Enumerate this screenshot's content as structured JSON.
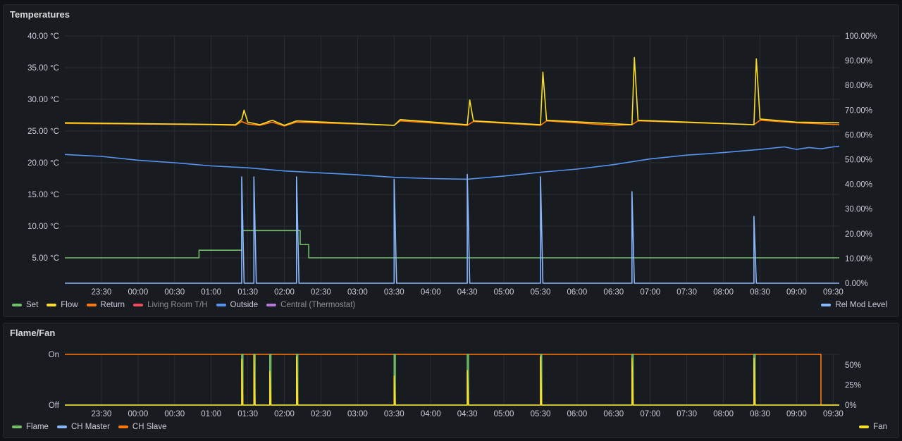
{
  "panels": {
    "temperatures": {
      "title": "Temperatures"
    },
    "flame_fan": {
      "title": "Flame/Fan"
    }
  },
  "chart_data": [
    {
      "type": "line",
      "title": "Temperatures",
      "x_ticks": [
        "23:30",
        "00:00",
        "00:30",
        "01:00",
        "01:30",
        "02:00",
        "02:30",
        "03:00",
        "03:30",
        "04:00",
        "04:30",
        "05:00",
        "05:30",
        "06:00",
        "06:30",
        "07:00",
        "07:30",
        "08:00",
        "08:30",
        "09:00",
        "09:30"
      ],
      "x_range": [
        "23:00",
        "09:35"
      ],
      "y_left": {
        "ticks": [
          "5.00 °C",
          "10.00 °C",
          "15.00 °C",
          "20.00 °C",
          "25.00 °C",
          "30.00 °C",
          "35.00 °C",
          "40.00 °C"
        ],
        "range": [
          1,
          40
        ]
      },
      "y_right": {
        "ticks": [
          "0.00%",
          "10.00%",
          "20.00%",
          "30.00%",
          "40.00%",
          "50.00%",
          "60.00%",
          "70.00%",
          "80.00%",
          "90.00%",
          "100.00%"
        ],
        "range": [
          0,
          100
        ]
      },
      "grid": true,
      "legend_left": [
        {
          "name": "Set",
          "color": "#73bf69",
          "hidden": false
        },
        {
          "name": "Flow",
          "color": "#fade2a",
          "hidden": false
        },
        {
          "name": "Return",
          "color": "#ff780a",
          "hidden": false
        },
        {
          "name": "Living Room T/H",
          "color": "#f2495c",
          "hidden": true
        },
        {
          "name": "Outside",
          "color": "#5794f2",
          "hidden": false
        },
        {
          "name": "Central (Thermostat)",
          "color": "#b877d9",
          "hidden": true
        }
      ],
      "legend_right": [
        {
          "name": "Rel Mod Level",
          "color": "#8ab8ff",
          "hidden": false
        }
      ],
      "series": [
        {
          "key": "set",
          "axis": "left",
          "color": "#73bf69",
          "step": true,
          "points": [
            [
              "23:00",
              5.0
            ],
            [
              "00:50",
              5.0
            ],
            [
              "00:50",
              6.2
            ],
            [
              "01:25",
              6.2
            ],
            [
              "01:25",
              9.3
            ],
            [
              "02:13",
              9.3
            ],
            [
              "02:13",
              7.1
            ],
            [
              "02:20",
              7.1
            ],
            [
              "02:20",
              5.0
            ],
            [
              "09:35",
              5.0
            ]
          ]
        },
        {
          "key": "return",
          "axis": "left",
          "color": "#ff780a",
          "step": false,
          "points": [
            [
              "23:00",
              26.2
            ],
            [
              "01:00",
              26.0
            ],
            [
              "01:20",
              25.9
            ],
            [
              "01:25",
              26.5
            ],
            [
              "01:30",
              26.1
            ],
            [
              "01:40",
              25.9
            ],
            [
              "01:50",
              26.4
            ],
            [
              "02:00",
              25.8
            ],
            [
              "02:10",
              26.4
            ],
            [
              "03:00",
              26.1
            ],
            [
              "03:30",
              25.9
            ],
            [
              "03:35",
              26.6
            ],
            [
              "04:30",
              25.9
            ],
            [
              "04:35",
              26.5
            ],
            [
              "05:30",
              25.9
            ],
            [
              "05:35",
              26.6
            ],
            [
              "06:30",
              25.9
            ],
            [
              "06:45",
              26.0
            ],
            [
              "06:50",
              26.6
            ],
            [
              "08:25",
              26.0
            ],
            [
              "08:30",
              26.7
            ],
            [
              "09:00",
              26.3
            ],
            [
              "09:35",
              26.0
            ]
          ]
        },
        {
          "key": "flow",
          "axis": "left",
          "color": "#fade2a",
          "step": false,
          "points": [
            [
              "23:00",
              26.3
            ],
            [
              "01:20",
              26.0
            ],
            [
              "01:25",
              26.8
            ],
            [
              "01:27",
              28.3
            ],
            [
              "01:30",
              26.4
            ],
            [
              "01:40",
              26.0
            ],
            [
              "01:50",
              26.7
            ],
            [
              "02:00",
              25.9
            ],
            [
              "02:10",
              26.6
            ],
            [
              "03:30",
              25.9
            ],
            [
              "03:35",
              26.8
            ],
            [
              "04:30",
              26.0
            ],
            [
              "04:32",
              29.9
            ],
            [
              "04:35",
              26.6
            ],
            [
              "05:30",
              26.0
            ],
            [
              "05:32",
              34.3
            ],
            [
              "05:35",
              26.7
            ],
            [
              "06:45",
              26.0
            ],
            [
              "06:47",
              36.6
            ],
            [
              "06:50",
              26.7
            ],
            [
              "08:25",
              26.0
            ],
            [
              "08:27",
              36.4
            ],
            [
              "08:30",
              26.9
            ],
            [
              "09:00",
              26.4
            ],
            [
              "09:35",
              26.3
            ]
          ]
        },
        {
          "key": "outside",
          "axis": "left",
          "color": "#5794f2",
          "step": false,
          "points": [
            [
              "23:00",
              21.3
            ],
            [
              "23:30",
              21.0
            ],
            [
              "00:00",
              20.4
            ],
            [
              "00:30",
              20.0
            ],
            [
              "01:00",
              19.5
            ],
            [
              "01:30",
              19.2
            ],
            [
              "02:00",
              18.7
            ],
            [
              "02:30",
              18.4
            ],
            [
              "03:00",
              18.1
            ],
            [
              "03:30",
              17.7
            ],
            [
              "04:00",
              17.5
            ],
            [
              "04:30",
              17.4
            ],
            [
              "05:00",
              17.9
            ],
            [
              "05:30",
              18.5
            ],
            [
              "06:00",
              19.0
            ],
            [
              "06:30",
              19.7
            ],
            [
              "07:00",
              20.6
            ],
            [
              "07:30",
              21.2
            ],
            [
              "08:00",
              21.6
            ],
            [
              "08:30",
              22.1
            ],
            [
              "08:50",
              22.5
            ],
            [
              "09:00",
              22.1
            ],
            [
              "09:10",
              22.4
            ],
            [
              "09:20",
              22.2
            ],
            [
              "09:30",
              22.5
            ],
            [
              "09:35",
              22.6
            ]
          ]
        },
        {
          "key": "rel_mod",
          "axis": "right",
          "color": "#8ab8ff",
          "step": false,
          "points": [
            [
              "23:00",
              0
            ],
            [
              "01:25",
              0
            ],
            [
              "01:25",
              43
            ],
            [
              "01:27",
              0
            ],
            [
              "01:35",
              0
            ],
            [
              "01:35",
              43
            ],
            [
              "01:37",
              0
            ],
            [
              "02:10",
              0
            ],
            [
              "02:10",
              43
            ],
            [
              "02:12",
              0
            ],
            [
              "03:30",
              0
            ],
            [
              "03:30",
              42
            ],
            [
              "03:32",
              0
            ],
            [
              "04:30",
              0
            ],
            [
              "04:30",
              44
            ],
            [
              "04:32",
              0
            ],
            [
              "05:30",
              0
            ],
            [
              "05:30",
              43
            ],
            [
              "05:32",
              0
            ],
            [
              "06:45",
              0
            ],
            [
              "06:45",
              37
            ],
            [
              "06:47",
              0
            ],
            [
              "08:25",
              0
            ],
            [
              "08:25",
              27
            ],
            [
              "08:27",
              0
            ],
            [
              "09:35",
              0
            ]
          ]
        }
      ]
    },
    {
      "type": "line",
      "title": "Flame/Fan",
      "x_ticks": [
        "23:30",
        "00:00",
        "00:30",
        "01:00",
        "01:30",
        "02:00",
        "02:30",
        "03:00",
        "03:30",
        "04:00",
        "04:30",
        "05:00",
        "05:30",
        "06:00",
        "06:30",
        "07:00",
        "07:30",
        "08:00",
        "08:30",
        "09:00",
        "09:30"
      ],
      "x_range": [
        "23:00",
        "09:35"
      ],
      "y_left": {
        "ticks": [
          "Off",
          "On"
        ],
        "range": [
          0,
          1
        ]
      },
      "y_right": {
        "ticks": [
          "0%",
          "25%",
          "50%"
        ],
        "range": [
          0,
          63
        ]
      },
      "grid": true,
      "legend_left": [
        {
          "name": "Flame",
          "color": "#73bf69",
          "hidden": false
        },
        {
          "name": "CH Master",
          "color": "#8ab8ff",
          "hidden": false
        },
        {
          "name": "CH Slave",
          "color": "#ff780a",
          "hidden": false
        }
      ],
      "legend_right": [
        {
          "name": "Fan",
          "color": "#fade2a",
          "hidden": false
        }
      ],
      "series": [
        {
          "key": "ch_slave",
          "axis": "left",
          "color": "#ff780a",
          "step": true,
          "points": [
            [
              "23:00",
              1
            ],
            [
              "09:20",
              1
            ],
            [
              "09:20",
              0
            ],
            [
              "09:35",
              0
            ]
          ]
        },
        {
          "key": "flame",
          "axis": "left",
          "color": "#73bf69",
          "step": true,
          "points": [
            [
              "23:00",
              0
            ],
            [
              "01:25",
              0
            ],
            [
              "01:25",
              1
            ],
            [
              "01:26",
              1
            ],
            [
              "01:26",
              0
            ],
            [
              "01:35",
              0
            ],
            [
              "01:35",
              1
            ],
            [
              "01:36",
              1
            ],
            [
              "01:36",
              0
            ],
            [
              "01:48",
              0
            ],
            [
              "01:48",
              1
            ],
            [
              "01:49",
              1
            ],
            [
              "01:49",
              0
            ],
            [
              "02:10",
              0
            ],
            [
              "02:10",
              1
            ],
            [
              "02:11",
              1
            ],
            [
              "02:11",
              0
            ],
            [
              "03:30",
              0
            ],
            [
              "03:30",
              1
            ],
            [
              "03:31",
              1
            ],
            [
              "03:31",
              0
            ],
            [
              "04:30",
              0
            ],
            [
              "04:30",
              1
            ],
            [
              "04:31",
              1
            ],
            [
              "04:31",
              0
            ],
            [
              "05:30",
              0
            ],
            [
              "05:30",
              1
            ],
            [
              "05:31",
              1
            ],
            [
              "05:31",
              0
            ],
            [
              "06:45",
              0
            ],
            [
              "06:45",
              1
            ],
            [
              "06:46",
              1
            ],
            [
              "06:46",
              0
            ],
            [
              "08:25",
              0
            ],
            [
              "08:25",
              1
            ],
            [
              "08:26",
              1
            ],
            [
              "08:26",
              0
            ],
            [
              "09:35",
              0
            ]
          ]
        },
        {
          "key": "fan",
          "axis": "right",
          "color": "#fade2a",
          "step": false,
          "points": [
            [
              "23:00",
              0
            ],
            [
              "01:25",
              0
            ],
            [
              "01:25",
              57
            ],
            [
              "01:26",
              0
            ],
            [
              "01:35",
              0
            ],
            [
              "01:35",
              62
            ],
            [
              "01:36",
              0
            ],
            [
              "01:48",
              0
            ],
            [
              "01:48",
              42
            ],
            [
              "01:49",
              0
            ],
            [
              "02:10",
              0
            ],
            [
              "02:10",
              60
            ],
            [
              "02:11",
              0
            ],
            [
              "03:30",
              0
            ],
            [
              "03:30",
              36
            ],
            [
              "03:31",
              0
            ],
            [
              "04:30",
              0
            ],
            [
              "04:30",
              43
            ],
            [
              "04:31",
              0
            ],
            [
              "05:30",
              0
            ],
            [
              "05:30",
              60
            ],
            [
              "05:31",
              0
            ],
            [
              "06:45",
              0
            ],
            [
              "06:45",
              58
            ],
            [
              "06:46",
              0
            ],
            [
              "08:25",
              0
            ],
            [
              "08:25",
              58
            ],
            [
              "08:26",
              0
            ],
            [
              "09:35",
              0
            ]
          ]
        }
      ]
    }
  ]
}
